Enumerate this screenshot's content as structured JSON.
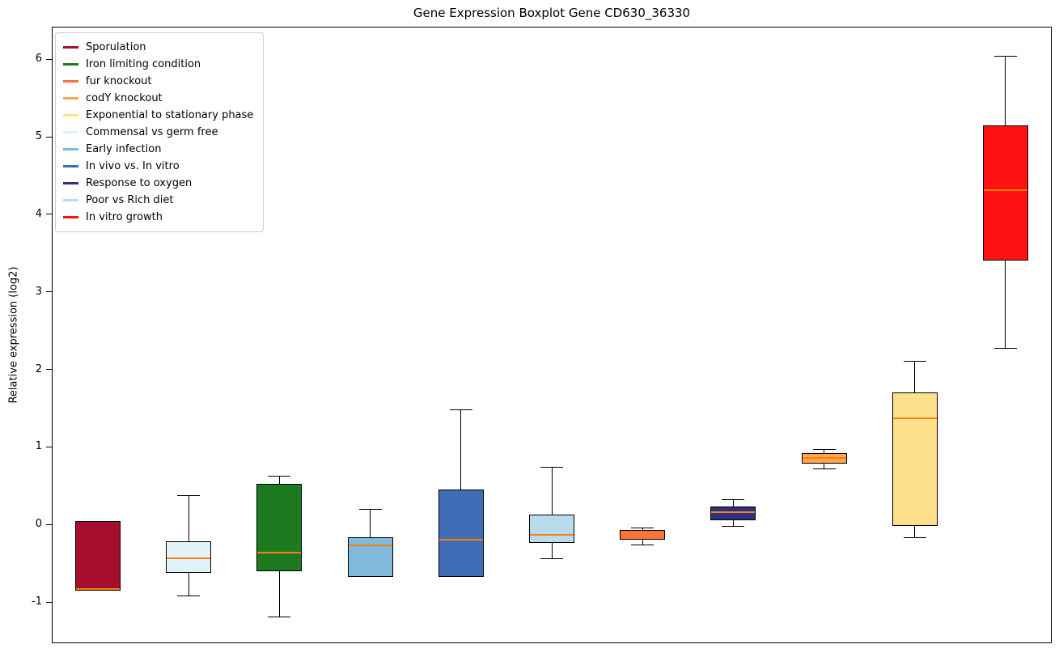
{
  "figure": {
    "background": "#ffffff"
  },
  "chart_data": {
    "type": "boxplot",
    "title": "Gene Expression Boxplot Gene CD630_36330",
    "xlabel": "",
    "ylabel": "Relative expression (log2)",
    "ylim": [
      -1.52,
      6.41
    ],
    "yticks": [
      -1,
      0,
      1,
      2,
      3,
      4,
      5,
      6
    ],
    "x_tick_labels": [],
    "grid": false,
    "legend_position": "upper left",
    "median_color": "#ff7f0e",
    "box_edge_color": "#000000",
    "legend": [
      {
        "label": "Sporulation",
        "color": "#a50f2d"
      },
      {
        "label": "Iron limiting condition",
        "color": "#1e7a21"
      },
      {
        "label": "fur knockout",
        "color": "#ff7043"
      },
      {
        "label": "codY knockout",
        "color": "#ffa64d"
      },
      {
        "label": "Exponential to stationary phase",
        "color": "#ffe08a"
      },
      {
        "label": "Commensal vs germ free",
        "color": "#e1f3f9"
      },
      {
        "label": "Early infection",
        "color": "#7fb9db"
      },
      {
        "label": "In vivo vs. In vitro",
        "color": "#3e6db5"
      },
      {
        "label": "Response to oxygen",
        "color": "#2d2f7f"
      },
      {
        "label": "Poor vs Rich diet",
        "color": "#b9dcec"
      },
      {
        "label": "In vitro growth",
        "color": "#ff1212"
      }
    ],
    "boxes": [
      {
        "condition": "Sporulation",
        "color": "#a50f2d",
        "whislo": -0.85,
        "q1": -0.85,
        "med": -0.83,
        "q3": 0.05,
        "whishi": 0.05
      },
      {
        "condition": "Commensal vs germ free",
        "color": "#e1f3f9",
        "whislo": -0.93,
        "q1": -0.62,
        "med": -0.44,
        "q3": -0.22,
        "whishi": 0.38
      },
      {
        "condition": "Iron limiting condition",
        "color": "#1e7a21",
        "whislo": -1.2,
        "q1": -0.6,
        "med": -0.36,
        "q3": 0.53,
        "whishi": 0.63
      },
      {
        "condition": "Early infection",
        "color": "#7fb9db",
        "whislo": -0.68,
        "q1": -0.68,
        "med": -0.27,
        "q3": -0.16,
        "whishi": 0.2
      },
      {
        "condition": "In vivo vs. In vitro",
        "color": "#3e6db5",
        "whislo": -0.68,
        "q1": -0.68,
        "med": -0.2,
        "q3": 0.45,
        "whishi": 1.48
      },
      {
        "condition": "Poor vs Rich diet",
        "color": "#b9dcec",
        "whislo": -0.45,
        "q1": -0.24,
        "med": -0.13,
        "q3": 0.13,
        "whishi": 0.74
      },
      {
        "condition": "fur knockout",
        "color": "#ff7043",
        "whislo": -0.27,
        "q1": -0.2,
        "med": -0.13,
        "q3": -0.07,
        "whishi": -0.04
      },
      {
        "condition": "Response to oxygen",
        "color": "#2d2f7f",
        "whislo": -0.03,
        "q1": 0.06,
        "med": 0.16,
        "q3": 0.23,
        "whishi": 0.33
      },
      {
        "condition": "codY knockout",
        "color": "#ffa64d",
        "whislo": 0.71,
        "q1": 0.79,
        "med": 0.86,
        "q3": 0.92,
        "whishi": 0.97
      },
      {
        "condition": "Exponential to stationary phase",
        "color": "#ffe08a",
        "whislo": -0.17,
        "q1": -0.02,
        "med": 1.37,
        "q3": 1.7,
        "whishi": 2.11
      },
      {
        "condition": "In vitro growth",
        "color": "#ff1212",
        "whislo": 2.27,
        "q1": 3.4,
        "med": 4.31,
        "q3": 5.15,
        "whishi": 6.05
      }
    ]
  }
}
